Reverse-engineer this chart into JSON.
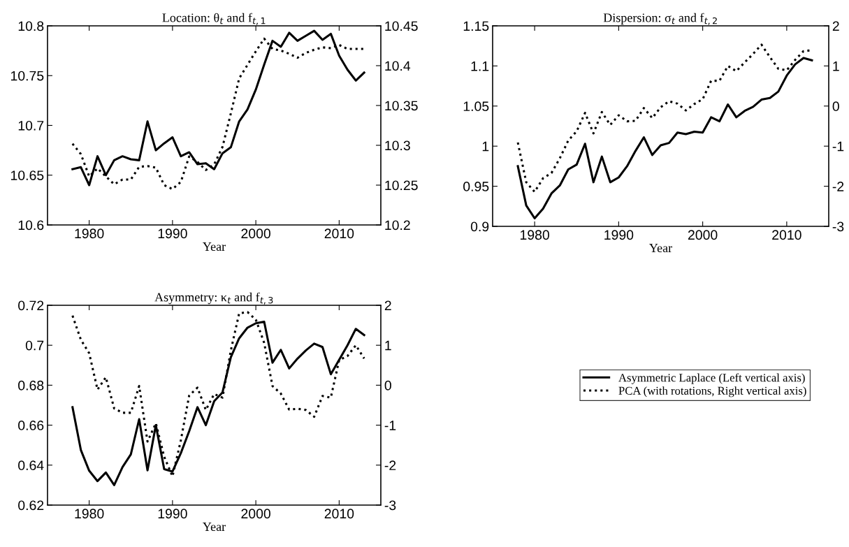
{
  "chart_data": [
    {
      "type": "line",
      "title": "Location: θ$_{t}$ and f$_{t,1}$",
      "xlabel": "Year",
      "x": [
        1978,
        1979,
        1980,
        1981,
        1982,
        1983,
        1984,
        1985,
        1986,
        1987,
        1988,
        1989,
        1990,
        1991,
        1992,
        1993,
        1994,
        1995,
        1996,
        1997,
        1998,
        1999,
        2000,
        2001,
        2002,
        2003,
        2004,
        2005,
        2006,
        2007,
        2008,
        2009,
        2010,
        2011,
        2012,
        2013
      ],
      "xlim": [
        1975,
        2015
      ],
      "xticks": [
        1980,
        1990,
        2000,
        2010
      ],
      "ylim": [
        10.6,
        10.8
      ],
      "yticks": [
        10.6,
        10.65,
        10.7,
        10.75,
        10.8
      ],
      "y2lim": [
        10.2,
        10.45
      ],
      "y2ticks": [
        10.2,
        10.25,
        10.3,
        10.35,
        10.4,
        10.45
      ],
      "series": [
        {
          "color": "#000000",
          "line_style": "solid",
          "axis": "y",
          "values": [
            10.656,
            10.658,
            10.64,
            10.669,
            10.65,
            10.665,
            10.669,
            10.666,
            10.665,
            10.704,
            10.675,
            10.682,
            10.688,
            10.669,
            10.673,
            10.661,
            10.662,
            10.656,
            10.672,
            10.678,
            10.704,
            10.716,
            10.736,
            10.761,
            10.785,
            10.779,
            10.793,
            10.785,
            10.79,
            10.795,
            10.786,
            10.792,
            10.77,
            10.756,
            10.745,
            10.753
          ]
        },
        {
          "color": "#000000",
          "line_style": "dotted",
          "axis": "y2",
          "values": [
            10.302,
            10.289,
            10.261,
            10.271,
            10.261,
            10.251,
            10.257,
            10.257,
            10.273,
            10.274,
            10.272,
            10.25,
            10.245,
            10.254,
            10.286,
            10.279,
            10.269,
            10.276,
            10.298,
            10.34,
            10.384,
            10.401,
            10.418,
            10.434,
            10.421,
            10.419,
            10.415,
            10.41,
            10.416,
            10.42,
            10.423,
            10.422,
            10.426,
            10.421,
            10.421,
            10.421
          ]
        }
      ]
    },
    {
      "type": "line",
      "title": "Dispersion: σ$_{t}$ and f$_{t,2}$",
      "xlabel": "Year",
      "x": [
        1978,
        1979,
        1980,
        1981,
        1982,
        1983,
        1984,
        1985,
        1986,
        1987,
        1988,
        1989,
        1990,
        1991,
        1992,
        1993,
        1994,
        1995,
        1996,
        1997,
        1998,
        1999,
        2000,
        2001,
        2002,
        2003,
        2004,
        2005,
        2006,
        2007,
        2008,
        2009,
        2010,
        2011,
        2012,
        2013
      ],
      "xlim": [
        1975,
        2015
      ],
      "xticks": [
        1980,
        1990,
        2000,
        2010
      ],
      "ylim": [
        0.9,
        1.15
      ],
      "yticks": [
        0.9,
        0.95,
        1,
        1.05,
        1.1,
        1.15
      ],
      "y2lim": [
        -3,
        2
      ],
      "y2ticks": [
        -3,
        -2,
        -1,
        0,
        1,
        2
      ],
      "series": [
        {
          "color": "#000000",
          "line_style": "solid",
          "axis": "y",
          "values": [
            0.975,
            0.926,
            0.91,
            0.922,
            0.941,
            0.951,
            0.971,
            0.977,
            1.003,
            0.955,
            0.987,
            0.955,
            0.961,
            0.975,
            0.994,
            1.011,
            0.989,
            1.001,
            1.004,
            1.017,
            1.015,
            1.018,
            1.017,
            1.036,
            1.031,
            1.052,
            1.036,
            1.044,
            1.049,
            1.058,
            1.06,
            1.068,
            1.088,
            1.102,
            1.11,
            1.107
          ]
        },
        {
          "color": "#000000",
          "line_style": "dotted",
          "axis": "y2",
          "values": [
            -0.91,
            -1.9,
            -2.14,
            -1.8,
            -1.67,
            -1.3,
            -0.86,
            -0.63,
            -0.17,
            -0.68,
            -0.15,
            -0.47,
            -0.23,
            -0.38,
            -0.37,
            -0.05,
            -0.3,
            -0.03,
            0.12,
            0.06,
            -0.11,
            0.05,
            0.17,
            0.63,
            0.63,
            1.0,
            0.87,
            1.09,
            1.3,
            1.53,
            1.22,
            0.93,
            0.89,
            1.15,
            1.37,
            1.39
          ]
        }
      ]
    },
    {
      "type": "line",
      "title": "Asymmetry: κ$_{t}$ and f$_{t,3}$",
      "xlabel": "Year",
      "legend": "right",
      "x": [
        1978,
        1979,
        1980,
        1981,
        1982,
        1983,
        1984,
        1985,
        1986,
        1987,
        1988,
        1989,
        1990,
        1991,
        1992,
        1993,
        1994,
        1995,
        1996,
        1997,
        1998,
        1999,
        2000,
        2001,
        2002,
        2003,
        2004,
        2005,
        2006,
        2007,
        2008,
        2009,
        2010,
        2011,
        2012,
        2013
      ],
      "xlim": [
        1975,
        2015
      ],
      "xticks": [
        1980,
        1990,
        2000,
        2010
      ],
      "ylim": [
        0.62,
        0.72
      ],
      "yticks": [
        0.62,
        0.64,
        0.66,
        0.68,
        0.7,
        0.72
      ],
      "y2lim": [
        -3,
        2
      ],
      "y2ticks": [
        -3,
        -2,
        -1,
        0,
        1,
        2
      ],
      "series": [
        {
          "name": "Asymmetric Laplace (Left vertical axis)",
          "color": "#000000",
          "line_style": "solid",
          "axis": "y",
          "values": [
            0.669,
            0.6476,
            0.6372,
            0.632,
            0.6363,
            0.63,
            0.639,
            0.6454,
            0.663,
            0.6374,
            0.66,
            0.638,
            0.6368,
            0.646,
            0.657,
            0.669,
            0.66,
            0.672,
            0.6764,
            0.694,
            0.7035,
            0.7088,
            0.711,
            0.7118,
            0.6913,
            0.6977,
            0.6884,
            0.6933,
            0.6974,
            0.7008,
            0.6991,
            0.6855,
            0.6927,
            0.7,
            0.7082,
            0.7051
          ]
        },
        {
          "name": "PCA (with rotations, Right vertical axis)",
          "color": "#000000",
          "line_style": "dotted",
          "axis": "y2",
          "values": [
            1.74,
            1.14,
            0.8,
            -0.11,
            0.2,
            -0.58,
            -0.69,
            -0.69,
            -0.02,
            -1.41,
            -0.95,
            -1.79,
            -2.28,
            -1.38,
            -0.26,
            -0.06,
            -0.62,
            -0.22,
            -0.31,
            0.87,
            1.8,
            1.83,
            1.64,
            1.06,
            -0.02,
            -0.21,
            -0.61,
            -0.59,
            -0.62,
            -0.79,
            -0.27,
            -0.31,
            0.63,
            0.73,
            1.0,
            0.67
          ]
        }
      ]
    }
  ]
}
